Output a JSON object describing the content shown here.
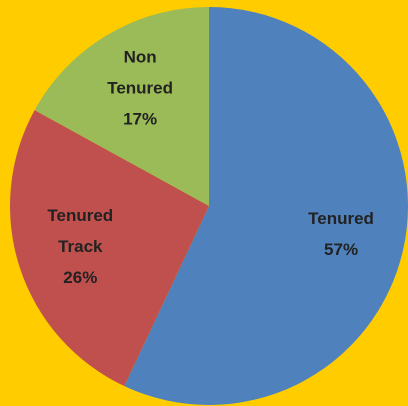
{
  "chart_data": {
    "type": "pie",
    "categories": [
      "Tenured",
      "Tenured Track",
      "Non Tenured"
    ],
    "values": [
      57,
      26,
      17
    ],
    "value_labels": [
      "57%",
      "26%",
      "17%"
    ],
    "colors": [
      "#4F81BD",
      "#C0504D",
      "#9BBB59"
    ],
    "background": "#FFCC00"
  }
}
